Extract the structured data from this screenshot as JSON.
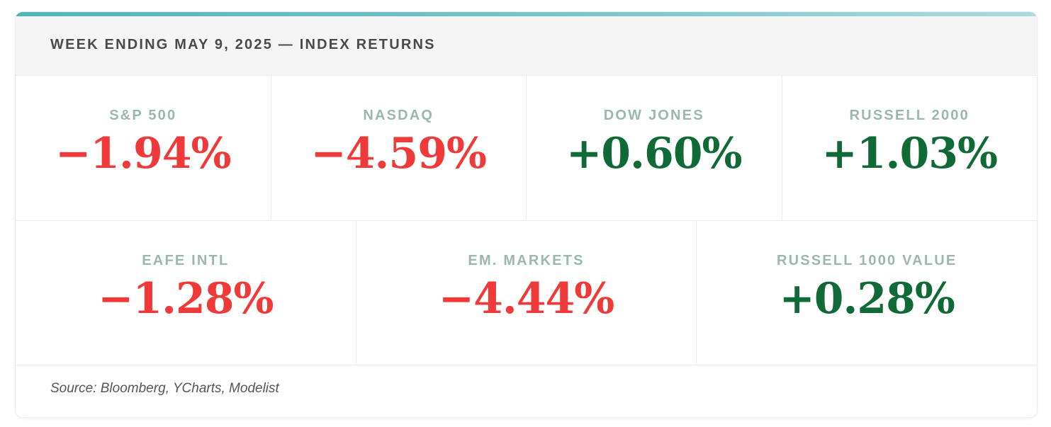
{
  "header": {
    "title": "WEEK ENDING MAY 9, 2025 — INDEX RETURNS"
  },
  "indices": [
    {
      "label": "S&P 500",
      "value": "−1.94%",
      "direction": "negative"
    },
    {
      "label": "NASDAQ",
      "value": "−4.59%",
      "direction": "negative"
    },
    {
      "label": "DOW JONES",
      "value": "+0.60%",
      "direction": "positive"
    },
    {
      "label": "RUSSELL 2000",
      "value": "+1.03%",
      "direction": "positive"
    },
    {
      "label": "EAFE INTL",
      "value": "−1.28%",
      "direction": "negative"
    },
    {
      "label": "EM. MARKETS",
      "value": "−4.44%",
      "direction": "negative"
    },
    {
      "label": "RUSSELL 1000 VALUE",
      "value": "+0.28%",
      "direction": "positive"
    }
  ],
  "footer": {
    "source": "Source: Bloomberg, YCharts, Modelist"
  },
  "colors": {
    "negative": "#f03a3a",
    "positive": "#0f6a36",
    "accent": "#4fb6b6",
    "label": "#9ab8ac"
  }
}
